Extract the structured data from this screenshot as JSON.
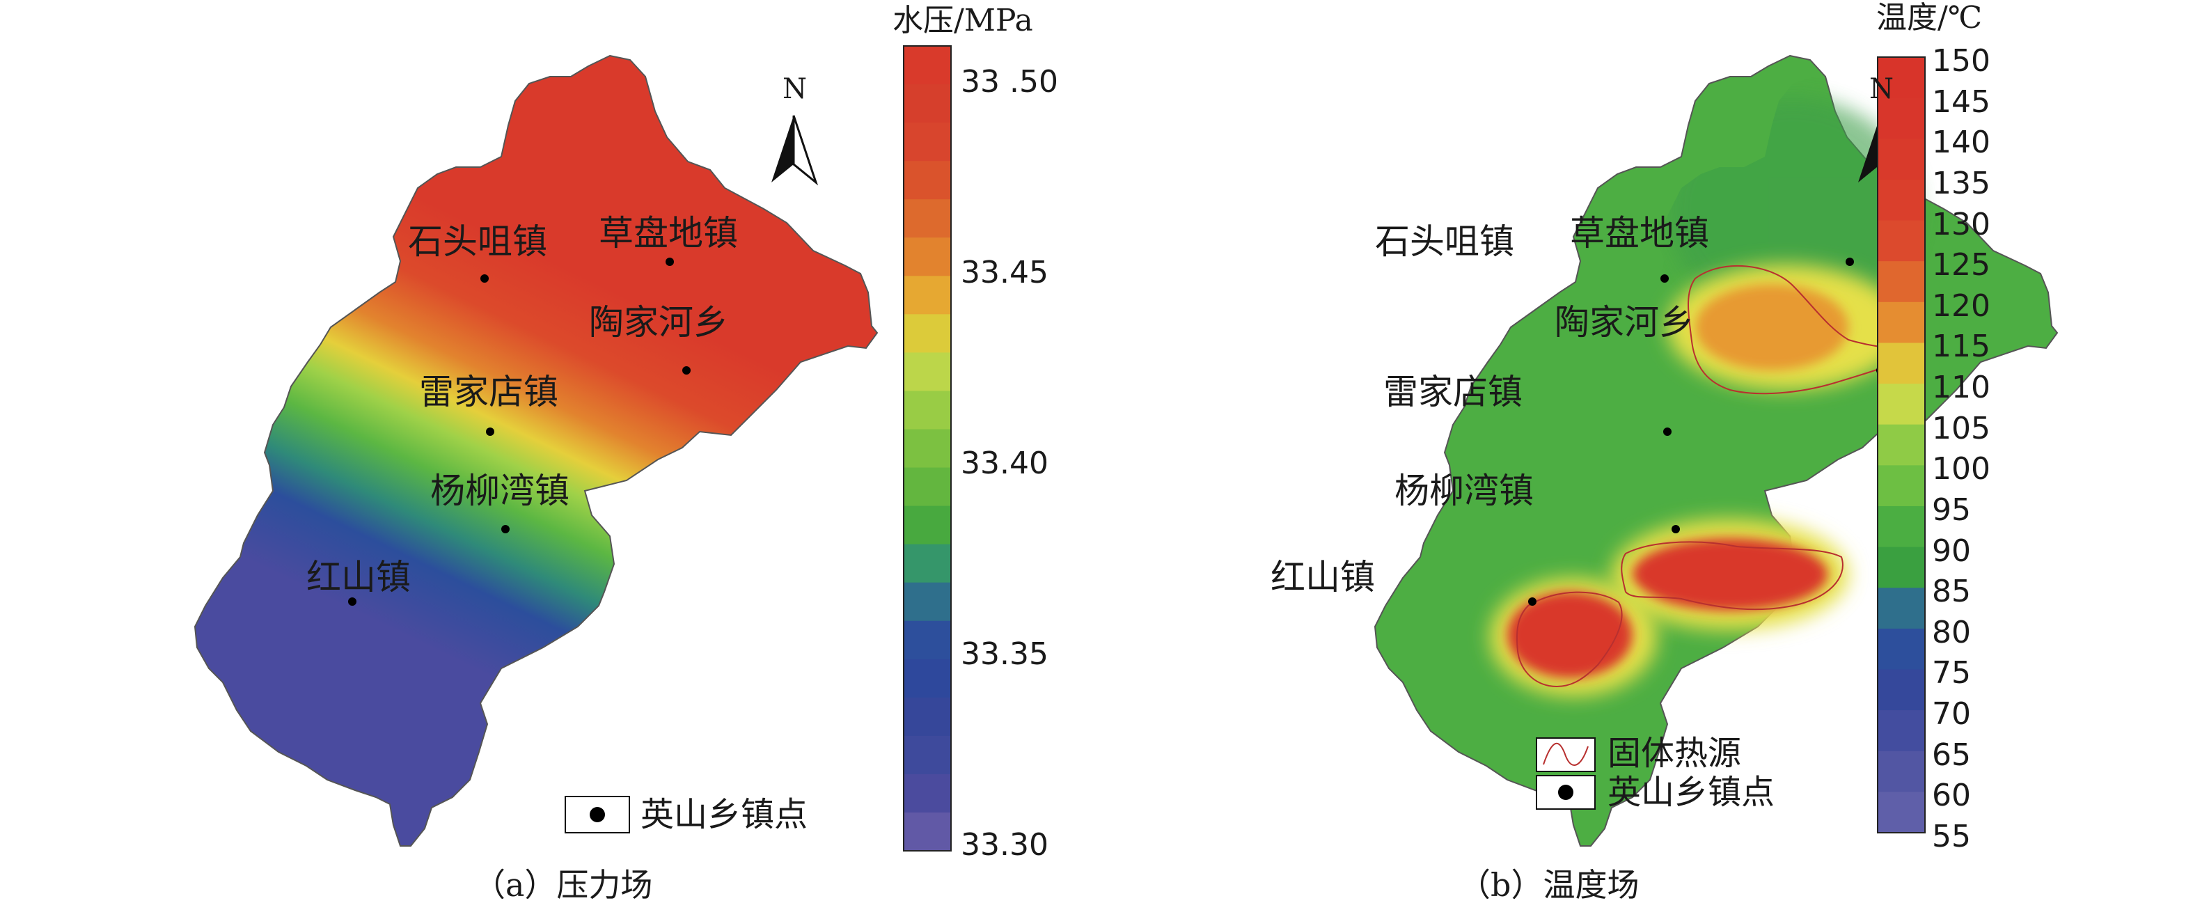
{
  "panels": [
    {
      "id": "a",
      "caption": "（a）压力场",
      "colorbar": {
        "title": "水压/MPa",
        "ticks": [
          "33 .50",
          "33.45",
          "33.40",
          "33.35",
          "33.30"
        ],
        "band_colors": [
          "#d93a2b",
          "#d63f2c",
          "#d8452d",
          "#da532c",
          "#dd6a2d",
          "#e2832e",
          "#e6a832",
          "#dccb3a",
          "#bcd64a",
          "#99cc45",
          "#7cc141",
          "#63b63f",
          "#48a93f",
          "#35966a",
          "#2f6f8c",
          "#2d4f9c",
          "#2e489c",
          "#36479a",
          "#3e4a9c",
          "#4b4b9e",
          "#6159a6"
        ]
      },
      "towns": [
        {
          "name": "石头咀镇"
        },
        {
          "name": "草盘地镇"
        },
        {
          "name": "陶家河乡"
        },
        {
          "name": "雷家店镇"
        },
        {
          "name": "杨柳湾镇"
        },
        {
          "name": "红山镇"
        }
      ],
      "north_label": "N",
      "legend": {
        "town_point": "英山乡镇点"
      }
    },
    {
      "id": "b",
      "caption": "（b）温度场",
      "colorbar": {
        "title": "温度/℃",
        "ticks": [
          "150",
          "145",
          "140",
          "135",
          "130",
          "125",
          "120",
          "115",
          "110",
          "105",
          "100",
          "95",
          "90",
          "85",
          "80",
          "75",
          "70",
          "65",
          "60",
          "55"
        ],
        "band_colors": [
          "#d8342a",
          "#d8362b",
          "#d93a2b",
          "#da3f2c",
          "#dc4a2d",
          "#e0672e",
          "#e58d31",
          "#e1c43a",
          "#c6d94a",
          "#8fcb46",
          "#6dbf43",
          "#4bae42",
          "#3aa040",
          "#2f6f8c",
          "#2d4f9c",
          "#35489b",
          "#434d9f",
          "#5256a3",
          "#5f5fa9"
        ]
      },
      "towns": [
        {
          "name": "石头咀镇"
        },
        {
          "name": "草盘地镇"
        },
        {
          "name": "陶家河乡"
        },
        {
          "name": "雷家店镇"
        },
        {
          "name": "杨柳湾镇"
        },
        {
          "name": "红山镇"
        }
      ],
      "north_label": "N",
      "legend": {
        "heat_source": "固体热源",
        "town_point": "英山乡镇点"
      }
    }
  ]
}
